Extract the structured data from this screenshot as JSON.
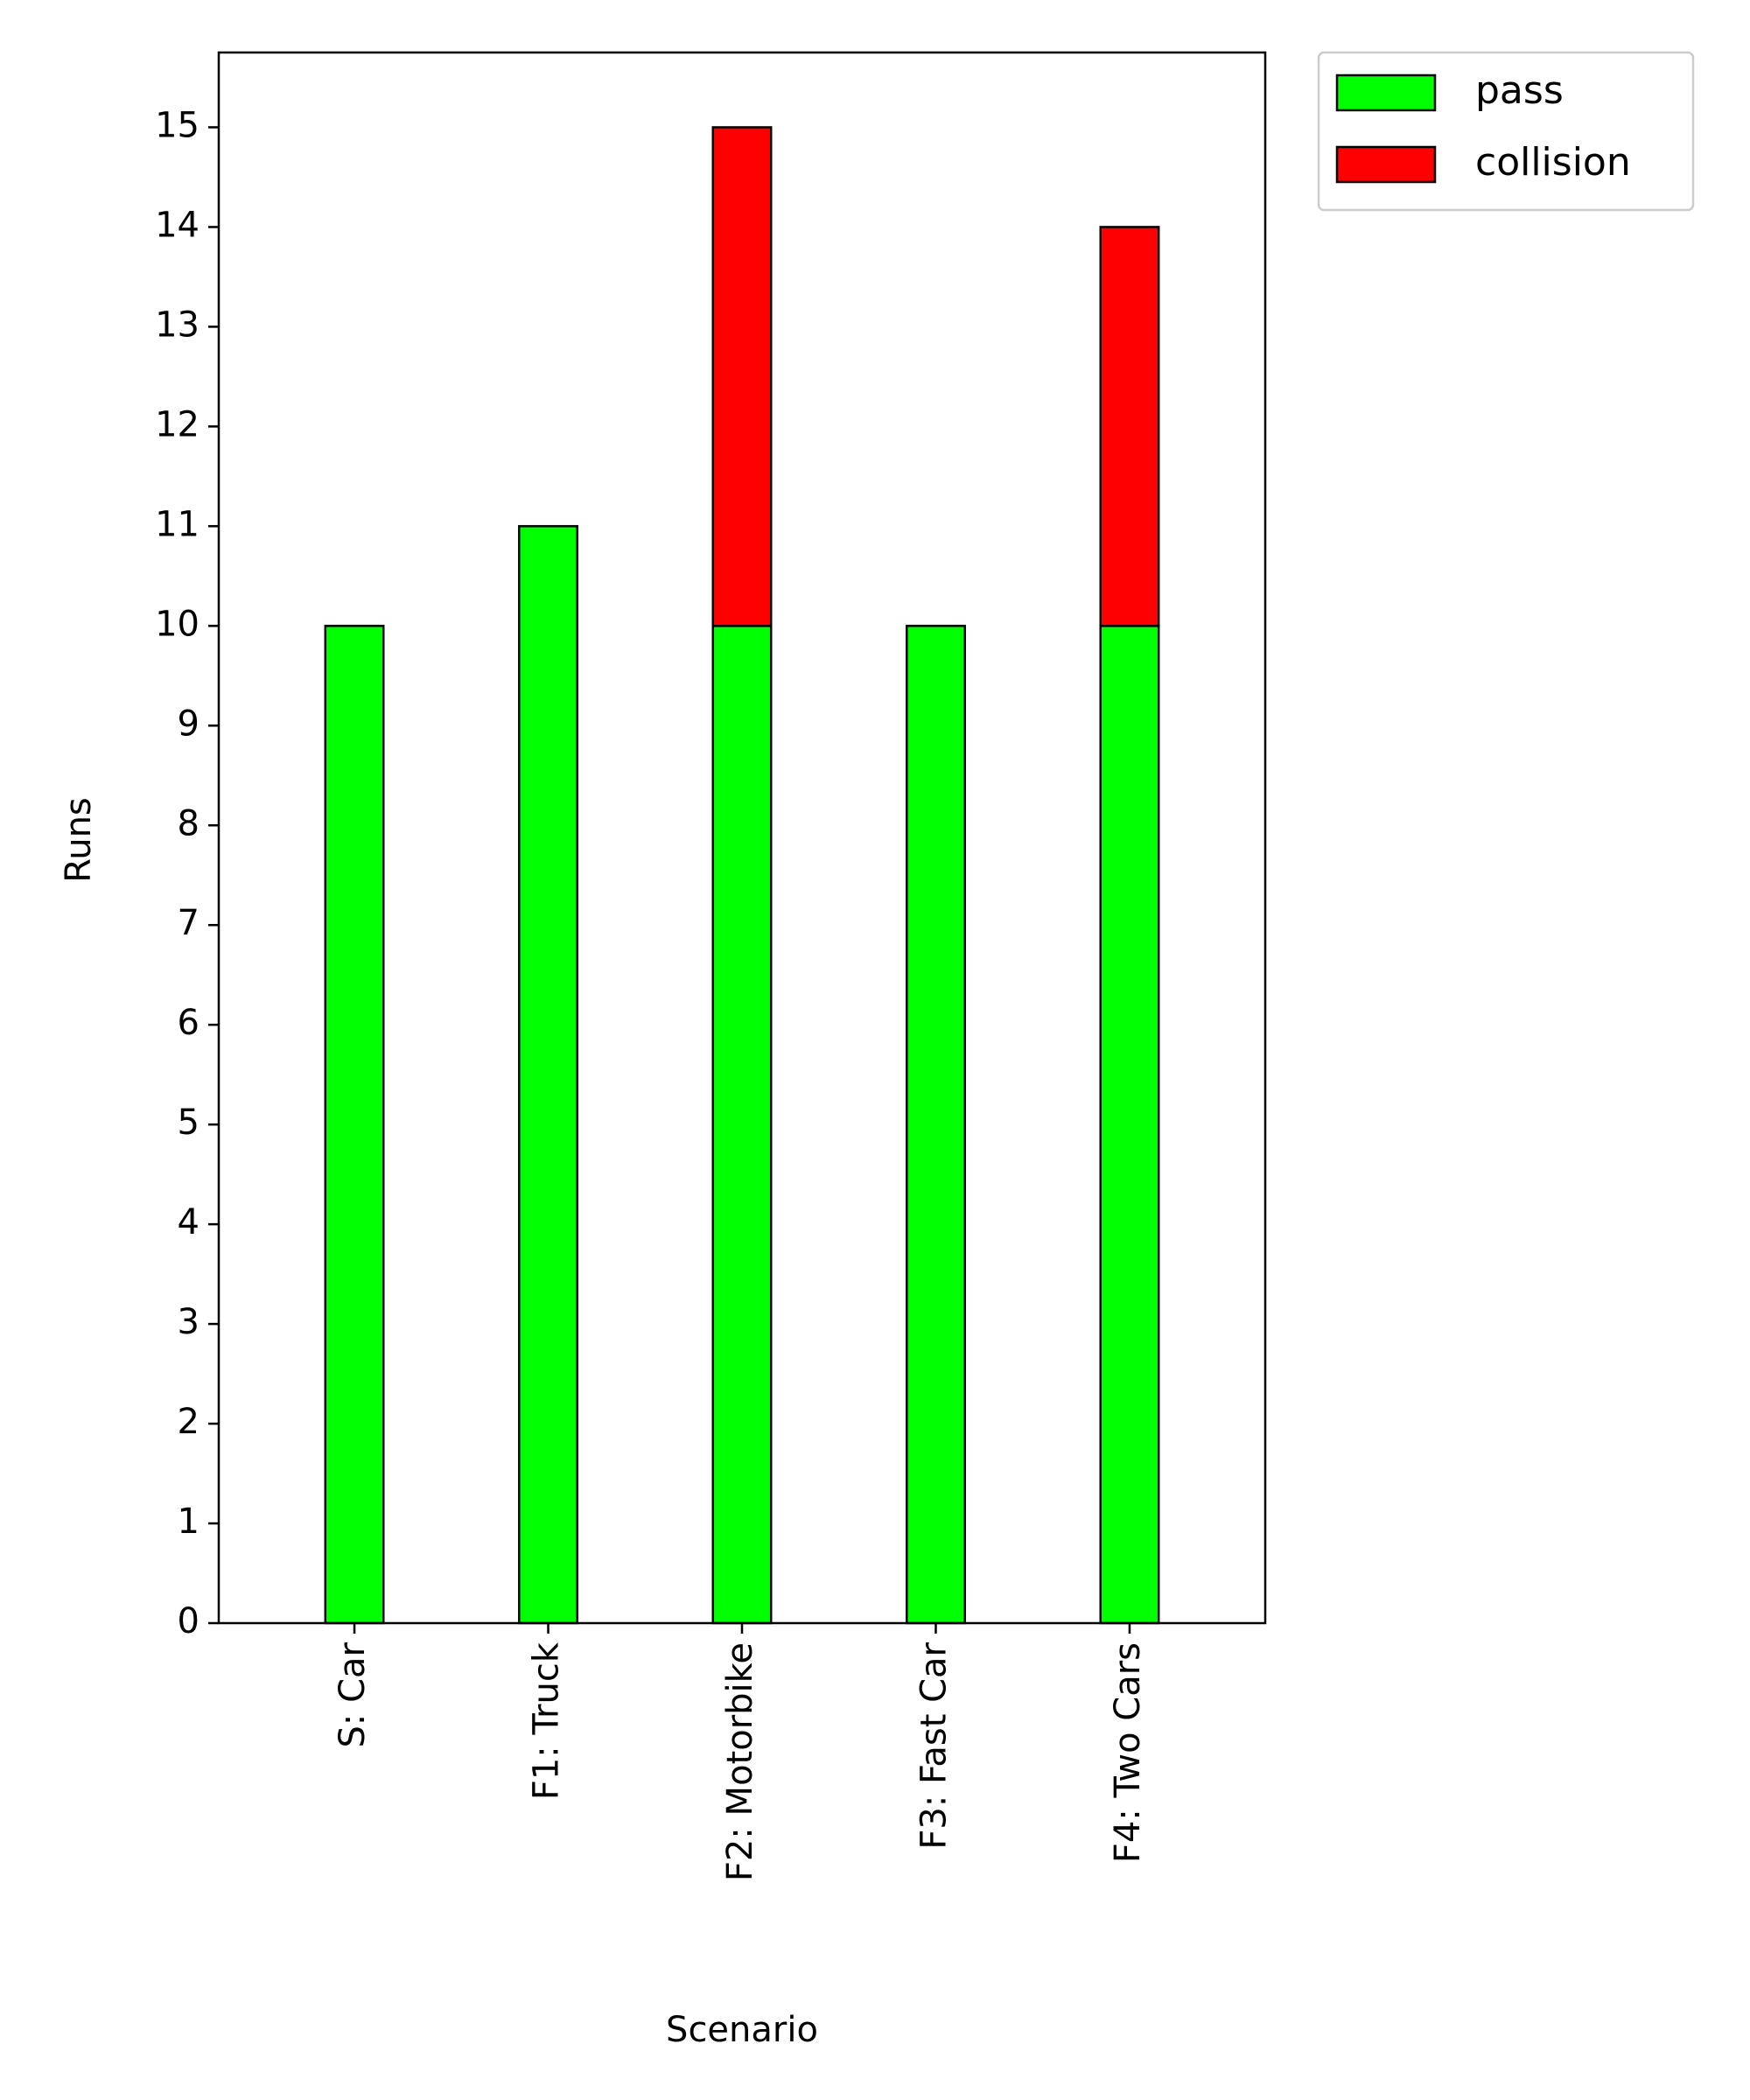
{
  "chart_data": {
    "type": "bar",
    "stacked": true,
    "categories": [
      "S: Car",
      "F1: Truck",
      "F2: Motorbike",
      "F3: Fast Car",
      "F4: Two Cars"
    ],
    "series": [
      {
        "name": "pass",
        "values": [
          10,
          11,
          10,
          10,
          10
        ],
        "color": "#00ff00"
      },
      {
        "name": "collision",
        "values": [
          0,
          0,
          5,
          0,
          4
        ],
        "color": "#ff0000"
      }
    ],
    "xlabel": "Scenario",
    "ylabel": "Runs",
    "ylim": [
      0,
      15.75
    ],
    "yticks": [
      0,
      1,
      2,
      3,
      4,
      5,
      6,
      7,
      8,
      9,
      10,
      11,
      12,
      13,
      14,
      15
    ],
    "grid": false,
    "legend_position": "outside top-right"
  }
}
